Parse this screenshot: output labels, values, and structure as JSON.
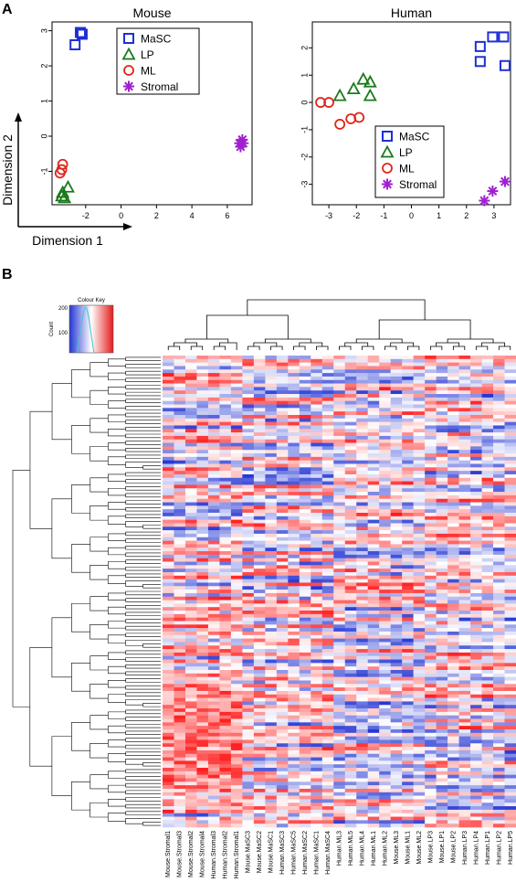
{
  "panels": {
    "a_label": "A",
    "b_label": "B"
  },
  "axes": {
    "ylabel": "Dimension 2",
    "xlabel": "Dimension 1"
  },
  "colors": {
    "MaSC": "#1f2fd6",
    "LP": "#1a7a1a",
    "ML": "#e0251b",
    "Stromal": "#a020d0"
  },
  "chart_data": [
    {
      "type": "scatter",
      "title": "Mouse",
      "xticks": [
        -2,
        0,
        2,
        4,
        6
      ],
      "yticks": [
        -1,
        0,
        1,
        2,
        3
      ],
      "xlim": [
        -3.9,
        7.4
      ],
      "ylim": [
        -1.95,
        3.25
      ],
      "legend_position": "top-center",
      "series": [
        {
          "name": "MaSC",
          "marker": "square",
          "points": [
            [
              -2.3,
              2.95
            ],
            [
              -2.6,
              2.6
            ],
            [
              -2.2,
              2.9
            ]
          ]
        },
        {
          "name": "LP",
          "marker": "triangle",
          "points": [
            [
              -3.0,
              -1.45
            ],
            [
              -3.3,
              -1.6
            ],
            [
              -3.2,
              -1.75
            ],
            [
              -3.35,
              -1.7
            ]
          ]
        },
        {
          "name": "ML",
          "marker": "circle",
          "points": [
            [
              -3.3,
              -0.8
            ],
            [
              -3.45,
              -1.05
            ],
            [
              -3.35,
              -0.95
            ]
          ]
        },
        {
          "name": "Stromal",
          "marker": "star",
          "points": [
            [
              6.7,
              -0.2
            ],
            [
              6.85,
              -0.1
            ],
            [
              6.75,
              -0.3
            ],
            [
              6.9,
              -0.2
            ]
          ]
        }
      ]
    },
    {
      "type": "scatter",
      "title": "Human",
      "xticks": [
        -3,
        -2,
        -1,
        0,
        1,
        2,
        3
      ],
      "yticks": [
        -3,
        -2,
        -1,
        0,
        1,
        2
      ],
      "xlim": [
        -3.6,
        3.6
      ],
      "ylim": [
        -3.75,
        2.95
      ],
      "legend_position": "bottom-center",
      "series": [
        {
          "name": "MaSC",
          "marker": "square",
          "points": [
            [
              2.5,
              2.05
            ],
            [
              2.5,
              1.5
            ],
            [
              2.95,
              2.4
            ],
            [
              3.35,
              2.4
            ],
            [
              3.4,
              1.35
            ]
          ]
        },
        {
          "name": "LP",
          "marker": "triangle",
          "points": [
            [
              -2.6,
              0.25
            ],
            [
              -2.1,
              0.5
            ],
            [
              -1.75,
              0.85
            ],
            [
              -1.5,
              0.75
            ],
            [
              -1.5,
              0.25
            ]
          ]
        },
        {
          "name": "ML",
          "marker": "circle",
          "points": [
            [
              -3.3,
              0.0
            ],
            [
              -3.0,
              0.0
            ],
            [
              -2.6,
              -0.8
            ],
            [
              -2.2,
              -0.6
            ],
            [
              -1.9,
              -0.55
            ]
          ]
        },
        {
          "name": "Stromal",
          "marker": "star",
          "points": [
            [
              2.95,
              -3.25
            ],
            [
              2.65,
              -3.6
            ],
            [
              3.4,
              -2.9
            ]
          ]
        }
      ]
    },
    {
      "type": "heatmap",
      "colour_key": {
        "title": "Colour Key",
        "ylabel": "Count",
        "ticks": [
          "200",
          "100"
        ]
      },
      "columns": [
        "Mouse.Stromal1",
        "Mouse.Stromal3",
        "Mouse.Stromal2",
        "Mouse.Stromal4",
        "Human.Stromal3",
        "Human.Stromal2",
        "Human.Stromal1",
        "Mouse.MaSC3",
        "Mouse.MaSC2",
        "Mouse.MaSC1",
        "Human.MaSC3",
        "Human.MaSC5",
        "Human.MaSC2",
        "Human.MaSC1",
        "Human.MaSC4",
        "Human.ML3",
        "Human.ML5",
        "Human.ML4",
        "Human.ML1",
        "Human.ML2",
        "Mouse.ML3",
        "Mouse.ML1",
        "Mouse.ML2",
        "Mouse.LP3",
        "Mouse.LP1",
        "Mouse.LP2",
        "Human.LP3",
        "Human.LP4",
        "Human.LP1",
        "Human.LP2",
        "Human.LP5"
      ],
      "row_count": 135,
      "palette": [
        "#2436d4",
        "#ffffff",
        "#e41a1a"
      ]
    }
  ]
}
